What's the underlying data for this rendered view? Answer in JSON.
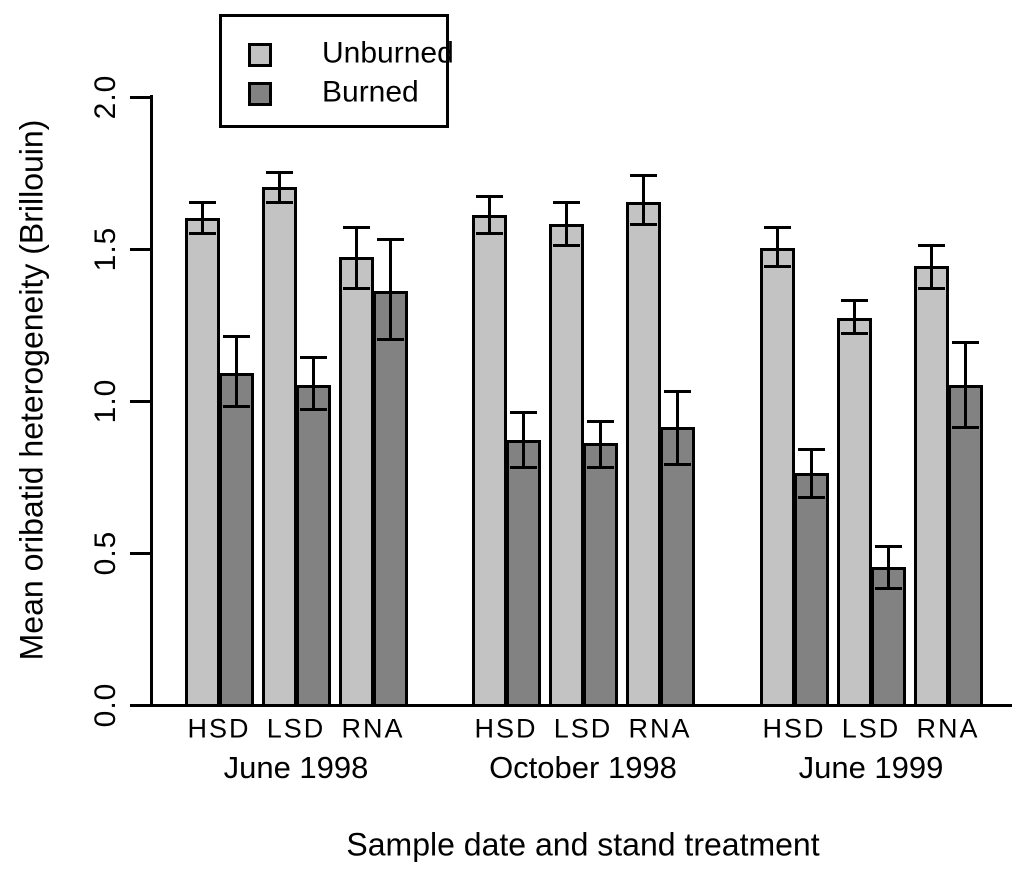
{
  "figure": {
    "background": "#ffffff",
    "ylabel": "Mean oribatid heterogeneity (Brillouin)",
    "xlabel": "Sample date and stand treatment"
  },
  "chart_data": {
    "type": "bar",
    "title": "",
    "xlabel": "Sample date and stand treatment",
    "ylabel": "Mean oribatid heterogeneity (Brillouin)",
    "ylim": [
      0.0,
      2.0
    ],
    "yticks": [
      0.0,
      0.5,
      1.0,
      1.5,
      2.0
    ],
    "ytick_labels": [
      "0.0",
      "0.5",
      "1.0",
      "1.5",
      "2.0"
    ],
    "grid": "off",
    "error_bars": "both-with-caps",
    "legend": {
      "position": "top-left",
      "entries": [
        {
          "name": "Unburned",
          "color": "#c3c3c3"
        },
        {
          "name": "Burned",
          "color": "#828282"
        }
      ]
    },
    "colors": {
      "unburned": "#c3c3c3",
      "burned": "#828282",
      "axis": "#000000"
    },
    "groups": [
      {
        "label": "June 1998",
        "categories": [
          "HSD",
          "LSD",
          "RNA"
        ],
        "series": [
          {
            "name": "Unburned",
            "values": [
              1.6,
              1.7,
              1.47
            ],
            "err_low": [
              1.55,
              1.65,
              1.37
            ],
            "err_high": [
              1.65,
              1.75,
              1.57
            ]
          },
          {
            "name": "Burned",
            "values": [
              1.09,
              1.05,
              1.36
            ],
            "err_low": [
              0.98,
              0.97,
              1.2
            ],
            "err_high": [
              1.21,
              1.14,
              1.53
            ]
          }
        ]
      },
      {
        "label": "October 1998",
        "categories": [
          "HSD",
          "LSD",
          "RNA"
        ],
        "series": [
          {
            "name": "Unburned",
            "values": [
              1.61,
              1.58,
              1.65
            ],
            "err_low": [
              1.55,
              1.51,
              1.58
            ],
            "err_high": [
              1.67,
              1.65,
              1.74
            ]
          },
          {
            "name": "Burned",
            "values": [
              0.87,
              0.86,
              0.91
            ],
            "err_low": [
              0.78,
              0.78,
              0.79
            ],
            "err_high": [
              0.96,
              0.93,
              1.03
            ]
          }
        ]
      },
      {
        "label": "June 1999",
        "categories": [
          "HSD",
          "LSD",
          "RNA"
        ],
        "series": [
          {
            "name": "Unburned",
            "values": [
              1.5,
              1.27,
              1.44
            ],
            "err_low": [
              1.44,
              1.22,
              1.37
            ],
            "err_high": [
              1.57,
              1.33,
              1.51
            ]
          },
          {
            "name": "Burned",
            "values": [
              0.76,
              0.45,
              1.05
            ],
            "err_low": [
              0.68,
              0.38,
              0.91
            ],
            "err_high": [
              0.84,
              0.52,
              1.19
            ]
          }
        ]
      }
    ]
  }
}
